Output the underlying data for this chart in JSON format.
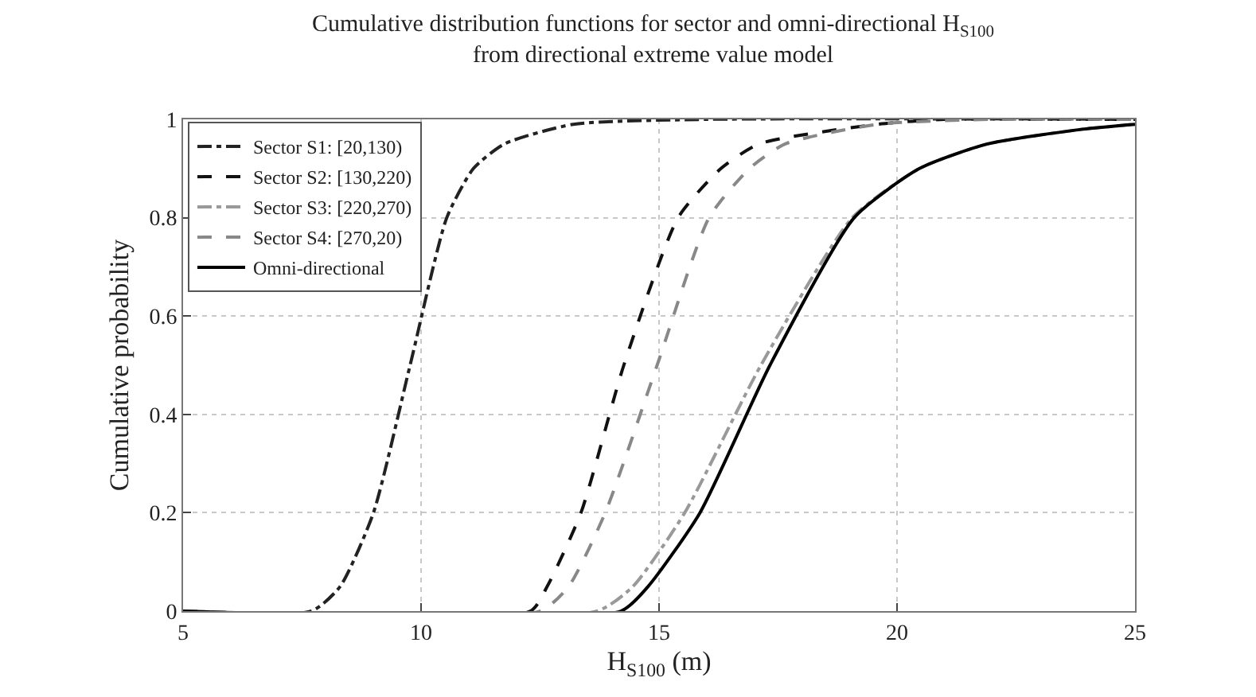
{
  "chart_data": {
    "type": "line",
    "title": "Cumulative distribution functions for sector and omni-directional H$_{S100}$",
    "subtitle": "from directional extreme value model",
    "xlabel": "H$_{S100}$ (m)",
    "ylabel": "Cumulative probability",
    "xlim": [
      5,
      25
    ],
    "xticks": [
      5,
      10,
      15,
      20,
      25
    ],
    "ylim": [
      0,
      1
    ],
    "yticks": [
      0,
      0.2,
      0.4,
      0.6,
      0.8,
      1
    ],
    "grid": true,
    "legend": "top left",
    "marker": "none",
    "series": [
      {
        "name": "Sector S1: [20,130)",
        "color": "#222222",
        "line_style": "dashdot",
        "x": [
          5,
          7.7,
          8.3,
          9.0,
          9.77,
          10.54,
          11.1,
          11.75,
          13.2,
          16,
          25
        ],
        "values": [
          0,
          0,
          0.05,
          0.2,
          0.5,
          0.8,
          0.9,
          0.95,
          0.99,
          1,
          1
        ]
      },
      {
        "name": "Sector S2: [130,220)",
        "color": "#111111",
        "line_style": "dashed",
        "x": [
          5,
          12.3,
          12.65,
          13.36,
          14.26,
          15.4,
          16.3,
          17.1,
          19.6,
          21,
          25
        ],
        "values": [
          0,
          0,
          0.05,
          0.2,
          0.5,
          0.8,
          0.9,
          0.95,
          0.99,
          1,
          1
        ]
      },
      {
        "name": "Sector S3: [220,270)",
        "color": "#999999",
        "line_style": "dashdot",
        "x": [
          5,
          13.7,
          14.45,
          15.54,
          17.14,
          19.06,
          20.47,
          21.9,
          23.9,
          25
        ],
        "values": [
          0,
          0,
          0.05,
          0.2,
          0.5,
          0.8,
          0.9,
          0.95,
          0.98,
          0.99
        ]
      },
      {
        "name": "Sector S4: [270,20)",
        "color": "#888888",
        "line_style": "dashed",
        "x": [
          5,
          12.5,
          13.1,
          13.87,
          14.96,
          16.05,
          16.9,
          17.65,
          19.6,
          22,
          25
        ],
        "values": [
          0,
          0,
          0.05,
          0.2,
          0.5,
          0.8,
          0.9,
          0.95,
          0.99,
          1,
          1
        ]
      },
      {
        "name": "Omni-directional",
        "color": "#000000",
        "line_style": "solid",
        "x": [
          5,
          14.2,
          14.77,
          15.86,
          17.33,
          19.1,
          20.47,
          21.9,
          23.9,
          25
        ],
        "values": [
          0,
          0,
          0.05,
          0.2,
          0.5,
          0.8,
          0.9,
          0.95,
          0.98,
          0.99
        ]
      }
    ]
  }
}
